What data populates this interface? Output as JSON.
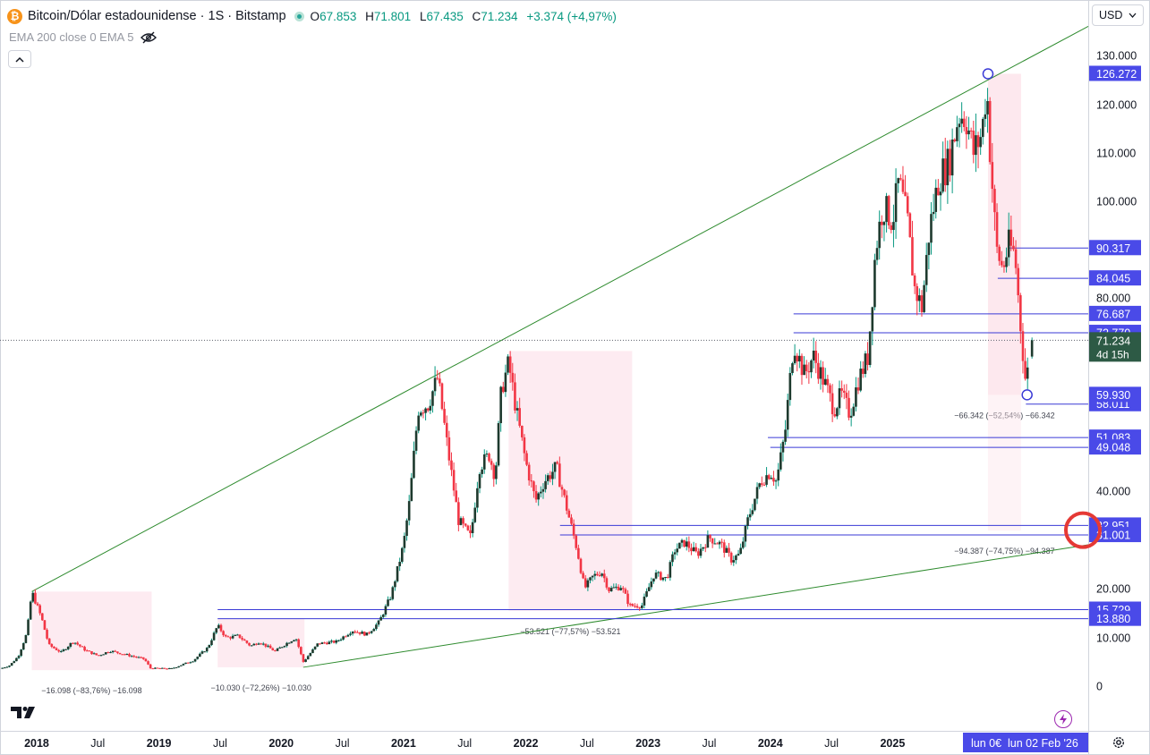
{
  "header": {
    "title": "Bitcoin/Dólar estadounidense · 1S · Bitstamp",
    "open_label": "O",
    "open": "67.853",
    "high_label": "H",
    "high": "71.801",
    "low_label": "L",
    "low": "67.435",
    "close_label": "C",
    "close": "71.234",
    "change": "+3.374 (+4,97%)"
  },
  "indicators_label": "EMA 200 close 0 EMA 5",
  "currency": "USD",
  "colors": {
    "up": "#089981",
    "down": "#f23645",
    "candle_body": "#1e3a2e",
    "trend_line": "#2e8b2e",
    "hline": "#3a3ad6",
    "label_bg": "#4a4ae8",
    "highlight": "#fce4ec",
    "marker": "#e53935",
    "current_price_bg": "#2d5a45"
  },
  "chart_data": {
    "type": "candlestick",
    "title": "Bitcoin/Dólar estadounidense · 1S · Bitstamp",
    "x_axis": {
      "range": [
        2017.7,
        2026.6
      ],
      "ticks": [
        {
          "t": 2018.0,
          "label": "2018",
          "bold": true
        },
        {
          "t": 2018.5,
          "label": "Jul",
          "bold": false
        },
        {
          "t": 2019.0,
          "label": "2019",
          "bold": true
        },
        {
          "t": 2019.5,
          "label": "Jul",
          "bold": false
        },
        {
          "t": 2020.0,
          "label": "2020",
          "bold": true
        },
        {
          "t": 2020.5,
          "label": "Jul",
          "bold": false
        },
        {
          "t": 2021.0,
          "label": "2021",
          "bold": true
        },
        {
          "t": 2021.5,
          "label": "Jul",
          "bold": false
        },
        {
          "t": 2022.0,
          "label": "2022",
          "bold": true
        },
        {
          "t": 2022.5,
          "label": "Jul",
          "bold": false
        },
        {
          "t": 2023.0,
          "label": "2023",
          "bold": true
        },
        {
          "t": 2023.5,
          "label": "Jul",
          "bold": false
        },
        {
          "t": 2024.0,
          "label": "2024",
          "bold": true
        },
        {
          "t": 2024.5,
          "label": "Jul",
          "bold": false
        },
        {
          "t": 2025.0,
          "label": "2025",
          "bold": true
        }
      ],
      "crosshair_labels": [
        "lun 0€",
        "lun 02 Feb '26"
      ]
    },
    "y_axis": {
      "range": [
        0,
        137000
      ],
      "ticks": [
        "130.000",
        "120.000",
        "110.000",
        "100.000",
        "80.000",
        "40.000",
        "20.000",
        "10.000",
        "0"
      ],
      "tick_values": [
        130000,
        120000,
        110000,
        100000,
        80000,
        40000,
        20000,
        10000,
        0
      ],
      "note": "tick spacing approximates the chart's price scaling"
    },
    "price_path": [
      [
        2017.7,
        3600
      ],
      [
        2017.78,
        4300
      ],
      [
        2017.85,
        6200
      ],
      [
        2017.92,
        11000
      ],
      [
        2017.96,
        19400
      ],
      [
        2018.04,
        14000
      ],
      [
        2018.1,
        8500
      ],
      [
        2018.2,
        7000
      ],
      [
        2018.3,
        9300
      ],
      [
        2018.4,
        7400
      ],
      [
        2018.5,
        6300
      ],
      [
        2018.6,
        7300
      ],
      [
        2018.75,
        6400
      ],
      [
        2018.88,
        5600
      ],
      [
        2018.93,
        3700
      ],
      [
        2019.1,
        3600
      ],
      [
        2019.28,
        5300
      ],
      [
        2019.4,
        8000
      ],
      [
        2019.48,
        12500
      ],
      [
        2019.55,
        10000
      ],
      [
        2019.65,
        10400
      ],
      [
        2019.75,
        8300
      ],
      [
        2019.82,
        9200
      ],
      [
        2019.95,
        7200
      ],
      [
        2020.05,
        9000
      ],
      [
        2020.12,
        10000
      ],
      [
        2020.18,
        5000
      ],
      [
        2020.3,
        8800
      ],
      [
        2020.45,
        9200
      ],
      [
        2020.58,
        11500
      ],
      [
        2020.7,
        10700
      ],
      [
        2020.8,
        13200
      ],
      [
        2020.9,
        18700
      ],
      [
        2021.0,
        29000
      ],
      [
        2021.05,
        38000
      ],
      [
        2021.12,
        57000
      ],
      [
        2021.2,
        58000
      ],
      [
        2021.28,
        63500
      ],
      [
        2021.36,
        49000
      ],
      [
        2021.45,
        34000
      ],
      [
        2021.55,
        30500
      ],
      [
        2021.62,
        45000
      ],
      [
        2021.7,
        47500
      ],
      [
        2021.75,
        43000
      ],
      [
        2021.8,
        61000
      ],
      [
        2021.86,
        66500
      ],
      [
        2021.92,
        57000
      ],
      [
        2022.0,
        46000
      ],
      [
        2022.08,
        38000
      ],
      [
        2022.15,
        42000
      ],
      [
        2022.25,
        45000
      ],
      [
        2022.33,
        37000
      ],
      [
        2022.42,
        28000
      ],
      [
        2022.48,
        20000
      ],
      [
        2022.55,
        22500
      ],
      [
        2022.62,
        23500
      ],
      [
        2022.68,
        19800
      ],
      [
        2022.78,
        20500
      ],
      [
        2022.85,
        16500
      ],
      [
        2022.95,
        16600
      ],
      [
        2023.05,
        23000
      ],
      [
        2023.15,
        22000
      ],
      [
        2023.22,
        28000
      ],
      [
        2023.3,
        29500
      ],
      [
        2023.4,
        27000
      ],
      [
        2023.5,
        30500
      ],
      [
        2023.6,
        29000
      ],
      [
        2023.68,
        26000
      ],
      [
        2023.75,
        27000
      ],
      [
        2023.82,
        34500
      ],
      [
        2023.92,
        42000
      ],
      [
        2024.0,
        44000
      ],
      [
        2024.05,
        42000
      ],
      [
        2024.12,
        52000
      ],
      [
        2024.19,
        71000
      ],
      [
        2024.28,
        64000
      ],
      [
        2024.35,
        68000
      ],
      [
        2024.45,
        62000
      ],
      [
        2024.52,
        57000
      ],
      [
        2024.58,
        60000
      ],
      [
        2024.65,
        56000
      ],
      [
        2024.72,
        63000
      ],
      [
        2024.8,
        68000
      ],
      [
        2024.86,
        90000
      ],
      [
        2024.92,
        99000
      ],
      [
        2025.0,
        96000
      ],
      [
        2025.05,
        104000
      ],
      [
        2025.12,
        96000
      ],
      [
        2025.18,
        82000
      ],
      [
        2025.24,
        78000
      ],
      [
        2025.3,
        94000
      ],
      [
        2025.38,
        105000
      ],
      [
        2025.46,
        108000
      ],
      [
        2025.54,
        118000
      ],
      [
        2025.6,
        117500
      ],
      [
        2025.66,
        110000
      ],
      [
        2025.73,
        114000
      ],
      [
        2025.77,
        124000
      ],
      [
        2025.8,
        109000
      ],
      [
        2025.85,
        90000
      ],
      [
        2025.9,
        86000
      ],
      [
        2025.95,
        91000
      ],
      [
        2026.0,
        89000
      ],
      [
        2026.05,
        73000
      ],
      [
        2026.09,
        62000
      ],
      [
        2026.12,
        67853
      ],
      [
        2026.14,
        71234
      ]
    ],
    "last_candle": {
      "open": 67853,
      "high": 71801,
      "low": 67435,
      "close": 71234
    },
    "trend_lines": [
      {
        "p1": [
          2017.96,
          19400
        ],
        "p2": [
          2026.6,
          136000
        ]
      },
      {
        "p1": [
          2020.18,
          3900
        ],
        "p2": [
          2026.6,
          29000
        ]
      }
    ],
    "horizontal_levels": [
      {
        "value": 90317,
        "label": "90.317",
        "from": 2025.96
      },
      {
        "value": 84045,
        "label": "84.045",
        "from": 2025.86
      },
      {
        "value": 76687,
        "label": "76.687",
        "from": 2024.19
      },
      {
        "value": 72770,
        "label": "72.770",
        "from": 2024.19
      },
      {
        "value": 58011,
        "label": "58.011",
        "from": 2026.09
      },
      {
        "value": 51083,
        "label": "51.083",
        "from": 2023.98
      },
      {
        "value": 49048,
        "label": "49.048",
        "from": 2024.0
      },
      {
        "value": 32951,
        "label": "32.951",
        "from": 2022.28
      },
      {
        "value": 31001,
        "label": "31.001",
        "from": 2022.28
      },
      {
        "value": 15729,
        "label": "15.729",
        "from": 2019.48
      },
      {
        "value": 13880,
        "label": "13.880",
        "from": 2019.48
      }
    ],
    "price_labels": [
      {
        "value": 126272,
        "label": "126.272"
      },
      {
        "value": 59930,
        "label": "59.930"
      }
    ],
    "current_price": {
      "value": 71234,
      "label": "71.234",
      "countdown": "4d 15h"
    },
    "range_boxes": [
      {
        "t1": 2017.96,
        "t2": 2018.94,
        "top": 19400,
        "bottom": 3300,
        "label": "−16.098 (−83,76%) −16.098"
      },
      {
        "t1": 2019.48,
        "t2": 2020.19,
        "top": 13900,
        "bottom": 3900,
        "label": "−10.030 (−72,26%) −10.030"
      },
      {
        "t1": 2021.86,
        "t2": 2022.87,
        "top": 69000,
        "bottom": 15500,
        "label": "−53.521 (−77,57%) −53.521"
      },
      {
        "t1": 2025.78,
        "t2": 2026.05,
        "top": 126272,
        "bottom": 59930,
        "label": "−66.342 (−52,54%) −66.342"
      },
      {
        "t1": 2025.78,
        "t2": 2026.05,
        "top": 126272,
        "bottom": 31885,
        "label": "−94.387 (−74,75%) −94.387",
        "tall": true
      }
    ],
    "points": [
      {
        "t": 2025.78,
        "value": 126272
      },
      {
        "t": 2026.1,
        "value": 59930
      }
    ],
    "highlight_circle": {
      "t": 2026.6,
      "value": 32000
    }
  }
}
